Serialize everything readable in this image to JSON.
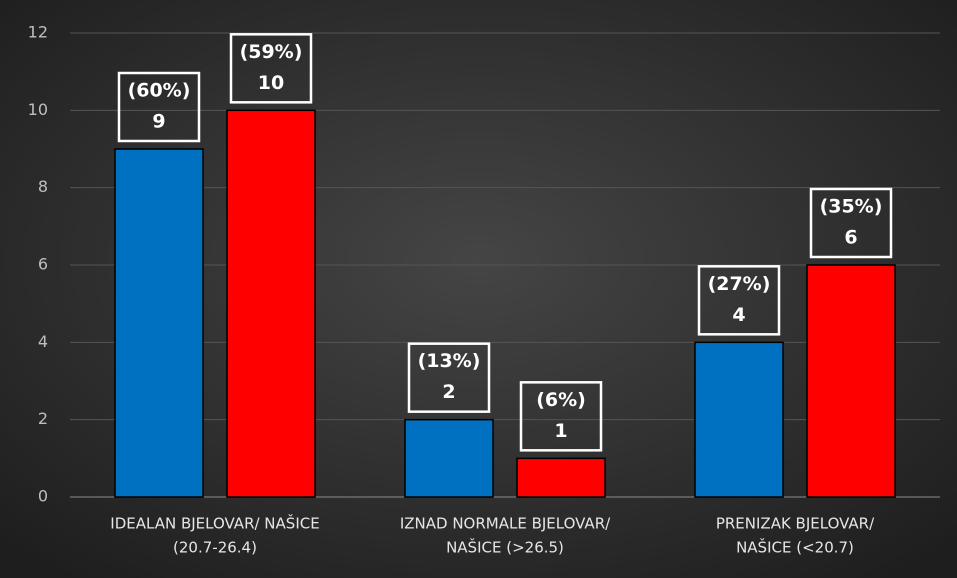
{
  "chart_data": {
    "type": "bar",
    "categories": [
      [
        "IDEALAN BJELOVAR/ NAŠICE",
        "(20.7-26.4)"
      ],
      [
        "IZNAD NORMALE BJELOVAR/",
        "NAŠICE (>26.5)"
      ],
      [
        "PRENIZAK BJELOVAR/",
        "NAŠICE (<20.7)"
      ]
    ],
    "series": [
      {
        "color": "#0070c0",
        "values": [
          9,
          2,
          4
        ],
        "percent_labels": [
          "(60%)",
          "(13%)",
          "(27%)"
        ]
      },
      {
        "color": "#ff0000",
        "values": [
          10,
          1,
          6
        ],
        "percent_labels": [
          "(59%)",
          "(6%)",
          "(35%)"
        ]
      }
    ],
    "ylim": [
      0,
      12
    ],
    "yticks": [
      0,
      2,
      4,
      6,
      8,
      10,
      12
    ],
    "grid": true
  }
}
